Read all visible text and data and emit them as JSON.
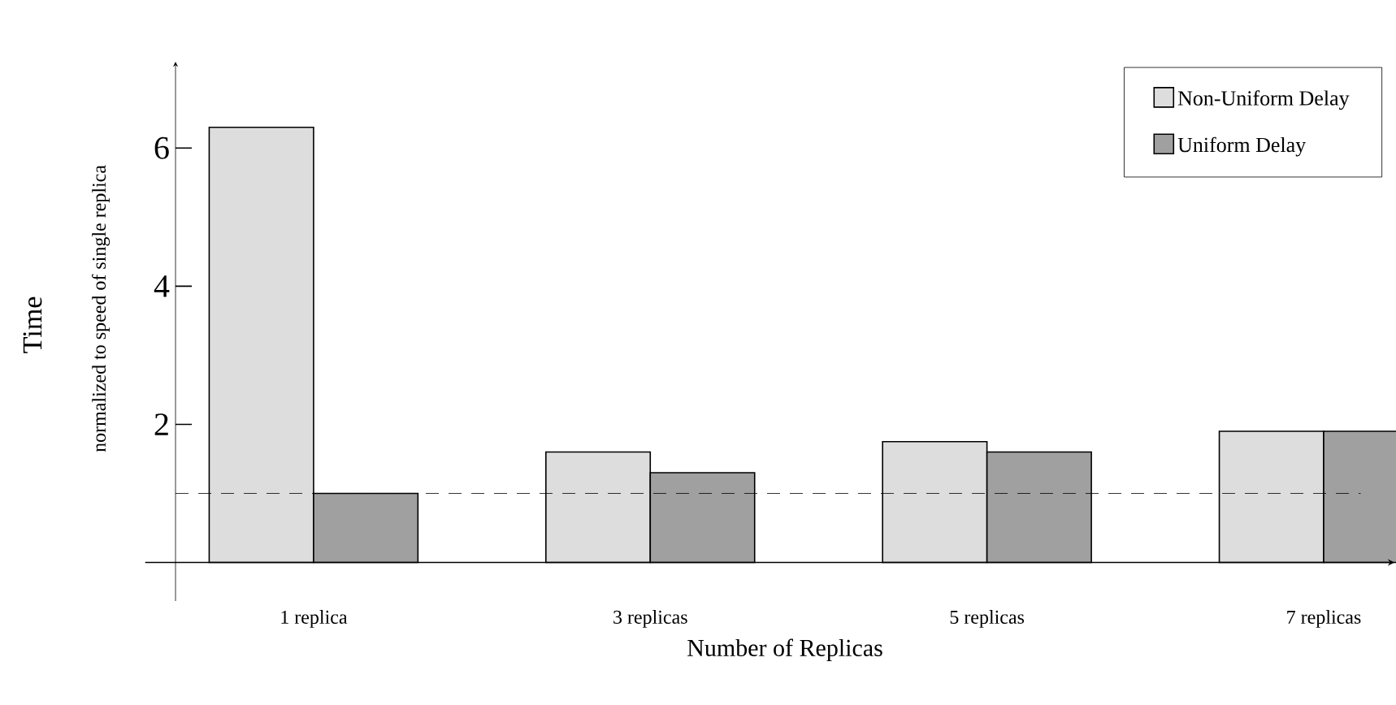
{
  "chart_data": {
    "type": "bar",
    "xlabel": "Number of Replicas",
    "ylabel": "Time",
    "annotations": [
      "normalized to speed of single replica"
    ],
    "categories": [
      "1 replica",
      "3 replicas",
      "5 replicas",
      "7 replicas"
    ],
    "series": [
      {
        "name": "Non-Uniform Delay",
        "color": "#dddddd",
        "values": [
          6.3,
          1.6,
          1.75,
          1.9
        ]
      },
      {
        "name": "Uniform Delay",
        "color": "#a0a0a0",
        "values": [
          1.0,
          1.3,
          1.6,
          1.9
        ]
      }
    ],
    "ylim": [
      0,
      7.25
    ],
    "yticks": [
      2,
      4,
      6
    ],
    "ref_lines": [
      {
        "axis": "y",
        "value": 1,
        "color": "#000000",
        "line_style": "dashed"
      }
    ],
    "legend": "top right"
  }
}
